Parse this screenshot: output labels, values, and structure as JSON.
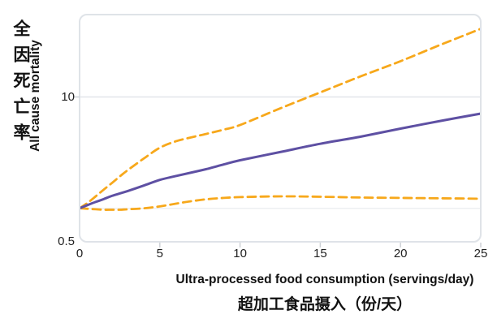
{
  "figure": {
    "ylabel_zh": "全因死亡率",
    "ylabel_en": "All cause mortality",
    "xlabel_en": "Ultra-processed food consumption (servings/day)",
    "xlabel_zh": "超加工食品摄入（份/天）"
  },
  "chart_data": {
    "type": "line",
    "title": "",
    "xlabel": "Ultra-processed food consumption (servings/day)",
    "ylabel": "All cause mortality",
    "x_axis": {
      "range": [
        0,
        25
      ],
      "ticks": [
        {
          "value": 0,
          "label": "0"
        },
        {
          "value": 5,
          "label": "5"
        },
        {
          "value": 10,
          "label": "10"
        },
        {
          "value": 15,
          "label": "15"
        },
        {
          "value": 20,
          "label": "20"
        },
        {
          "value": 25,
          "label": "25"
        }
      ],
      "tick_marks": [
        5,
        10,
        15,
        20,
        25
      ]
    },
    "y_axis": {
      "scale": "log",
      "range": [
        0.5,
        55
      ],
      "ticks": [
        {
          "value": 0.5,
          "label": "0.5"
        },
        {
          "value": 10,
          "label": "10"
        }
      ],
      "gridlines": [
        {
          "value": 1,
          "color": "#edeff2"
        },
        {
          "value": 10,
          "color": "#e2e5e9"
        }
      ]
    },
    "x": [
      0,
      0.5,
      1,
      1.5,
      2,
      2.5,
      3,
      4,
      5,
      6,
      7,
      8,
      9,
      10,
      12.5,
      15,
      17.5,
      20,
      22.5,
      25
    ],
    "series": [
      {
        "name": "upper-95ci",
        "style": "dashed",
        "color": "#f7a81b",
        "values": [
          1.0,
          1.12,
          1.28,
          1.47,
          1.68,
          1.93,
          2.2,
          2.8,
          3.5,
          4.0,
          4.35,
          4.7,
          5.1,
          5.6,
          7.9,
          11.0,
          15.3,
          21.0,
          29.5,
          41.0
        ]
      },
      {
        "name": "lower-95ci",
        "style": "dashed",
        "color": "#f7a81b",
        "values": [
          1.0,
          0.99,
          0.98,
          0.97,
          0.97,
          0.97,
          0.98,
          1.0,
          1.04,
          1.1,
          1.16,
          1.21,
          1.24,
          1.26,
          1.28,
          1.27,
          1.25,
          1.24,
          1.23,
          1.22
        ]
      },
      {
        "name": "hazard-ratio-central",
        "style": "solid",
        "color": "#5e50a3",
        "values": [
          1.0,
          1.07,
          1.14,
          1.21,
          1.29,
          1.36,
          1.43,
          1.6,
          1.8,
          1.95,
          2.1,
          2.27,
          2.48,
          2.7,
          3.2,
          3.8,
          4.4,
          5.2,
          6.1,
          7.1
        ]
      }
    ],
    "frame": {
      "border_color": "#dfe3e8",
      "tick_color": "#cdd1d6"
    }
  }
}
